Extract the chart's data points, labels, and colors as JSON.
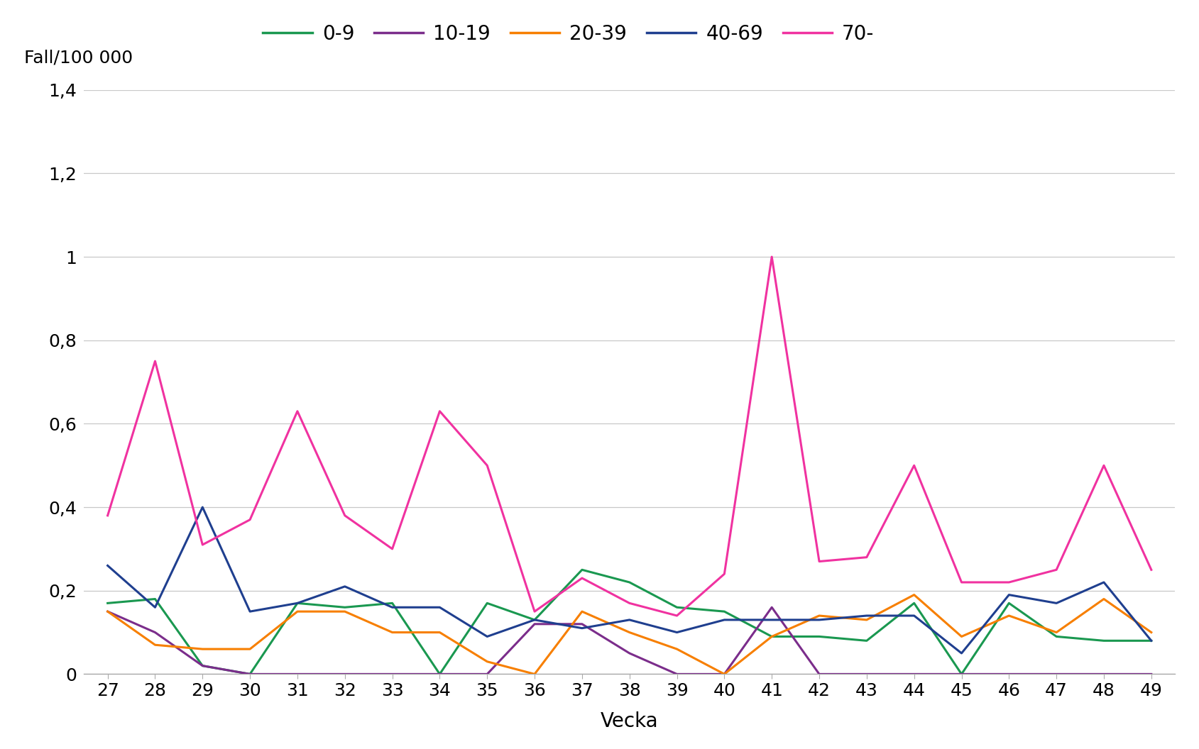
{
  "weeks": [
    27,
    28,
    29,
    30,
    31,
    32,
    33,
    34,
    35,
    36,
    37,
    38,
    39,
    40,
    41,
    42,
    43,
    44,
    45,
    46,
    47,
    48,
    49
  ],
  "series": {
    "0-9": {
      "color": "#1a9850",
      "values": [
        0.17,
        0.18,
        0.02,
        0.0,
        0.17,
        0.16,
        0.17,
        0.0,
        0.17,
        0.13,
        0.25,
        0.22,
        0.16,
        0.15,
        0.09,
        0.09,
        0.08,
        0.17,
        0.0,
        0.17,
        0.09,
        0.08,
        0.08
      ]
    },
    "10-19": {
      "color": "#7b2d8b",
      "values": [
        0.15,
        0.1,
        0.02,
        0.0,
        0.0,
        0.0,
        0.0,
        0.0,
        0.0,
        0.12,
        0.12,
        0.05,
        0.0,
        0.0,
        0.16,
        0.0,
        0.0,
        0.0,
        0.0,
        0.0,
        0.0,
        0.0,
        0.0
      ]
    },
    "20-39": {
      "color": "#f77f00",
      "values": [
        0.15,
        0.07,
        0.06,
        0.06,
        0.15,
        0.15,
        0.1,
        0.1,
        0.03,
        0.0,
        0.15,
        0.1,
        0.06,
        0.0,
        0.09,
        0.14,
        0.13,
        0.19,
        0.09,
        0.14,
        0.1,
        0.18,
        0.1
      ]
    },
    "40-69": {
      "color": "#1f3f8f",
      "values": [
        0.26,
        0.16,
        0.4,
        0.15,
        0.17,
        0.21,
        0.16,
        0.16,
        0.09,
        0.13,
        0.11,
        0.13,
        0.1,
        0.13,
        0.13,
        0.13,
        0.14,
        0.14,
        0.05,
        0.19,
        0.17,
        0.22,
        0.08
      ]
    },
    "70-": {
      "color": "#f032a0",
      "values": [
        0.38,
        0.75,
        0.31,
        0.37,
        0.63,
        0.38,
        0.3,
        0.63,
        0.5,
        0.15,
        0.23,
        0.17,
        0.14,
        0.24,
        1.0,
        0.27,
        0.28,
        0.5,
        0.22,
        0.22,
        0.25,
        0.5,
        0.25
      ]
    }
  },
  "ylabel": "Fall/100 000",
  "xlabel": "Vecka",
  "ylim": [
    0,
    1.4
  ],
  "yticks": [
    0,
    0.2,
    0.4,
    0.6,
    0.8,
    1.0,
    1.2,
    1.4
  ],
  "ytick_labels": [
    "0",
    "0,2",
    "0,4",
    "0,6",
    "0,8",
    "1",
    "1,2",
    "1,4"
  ],
  "background_color": "#ffffff",
  "grid_color": "#c8c8c8",
  "line_width": 2.2,
  "legend_order": [
    "0-9",
    "10-19",
    "20-39",
    "40-69",
    "70-"
  ]
}
